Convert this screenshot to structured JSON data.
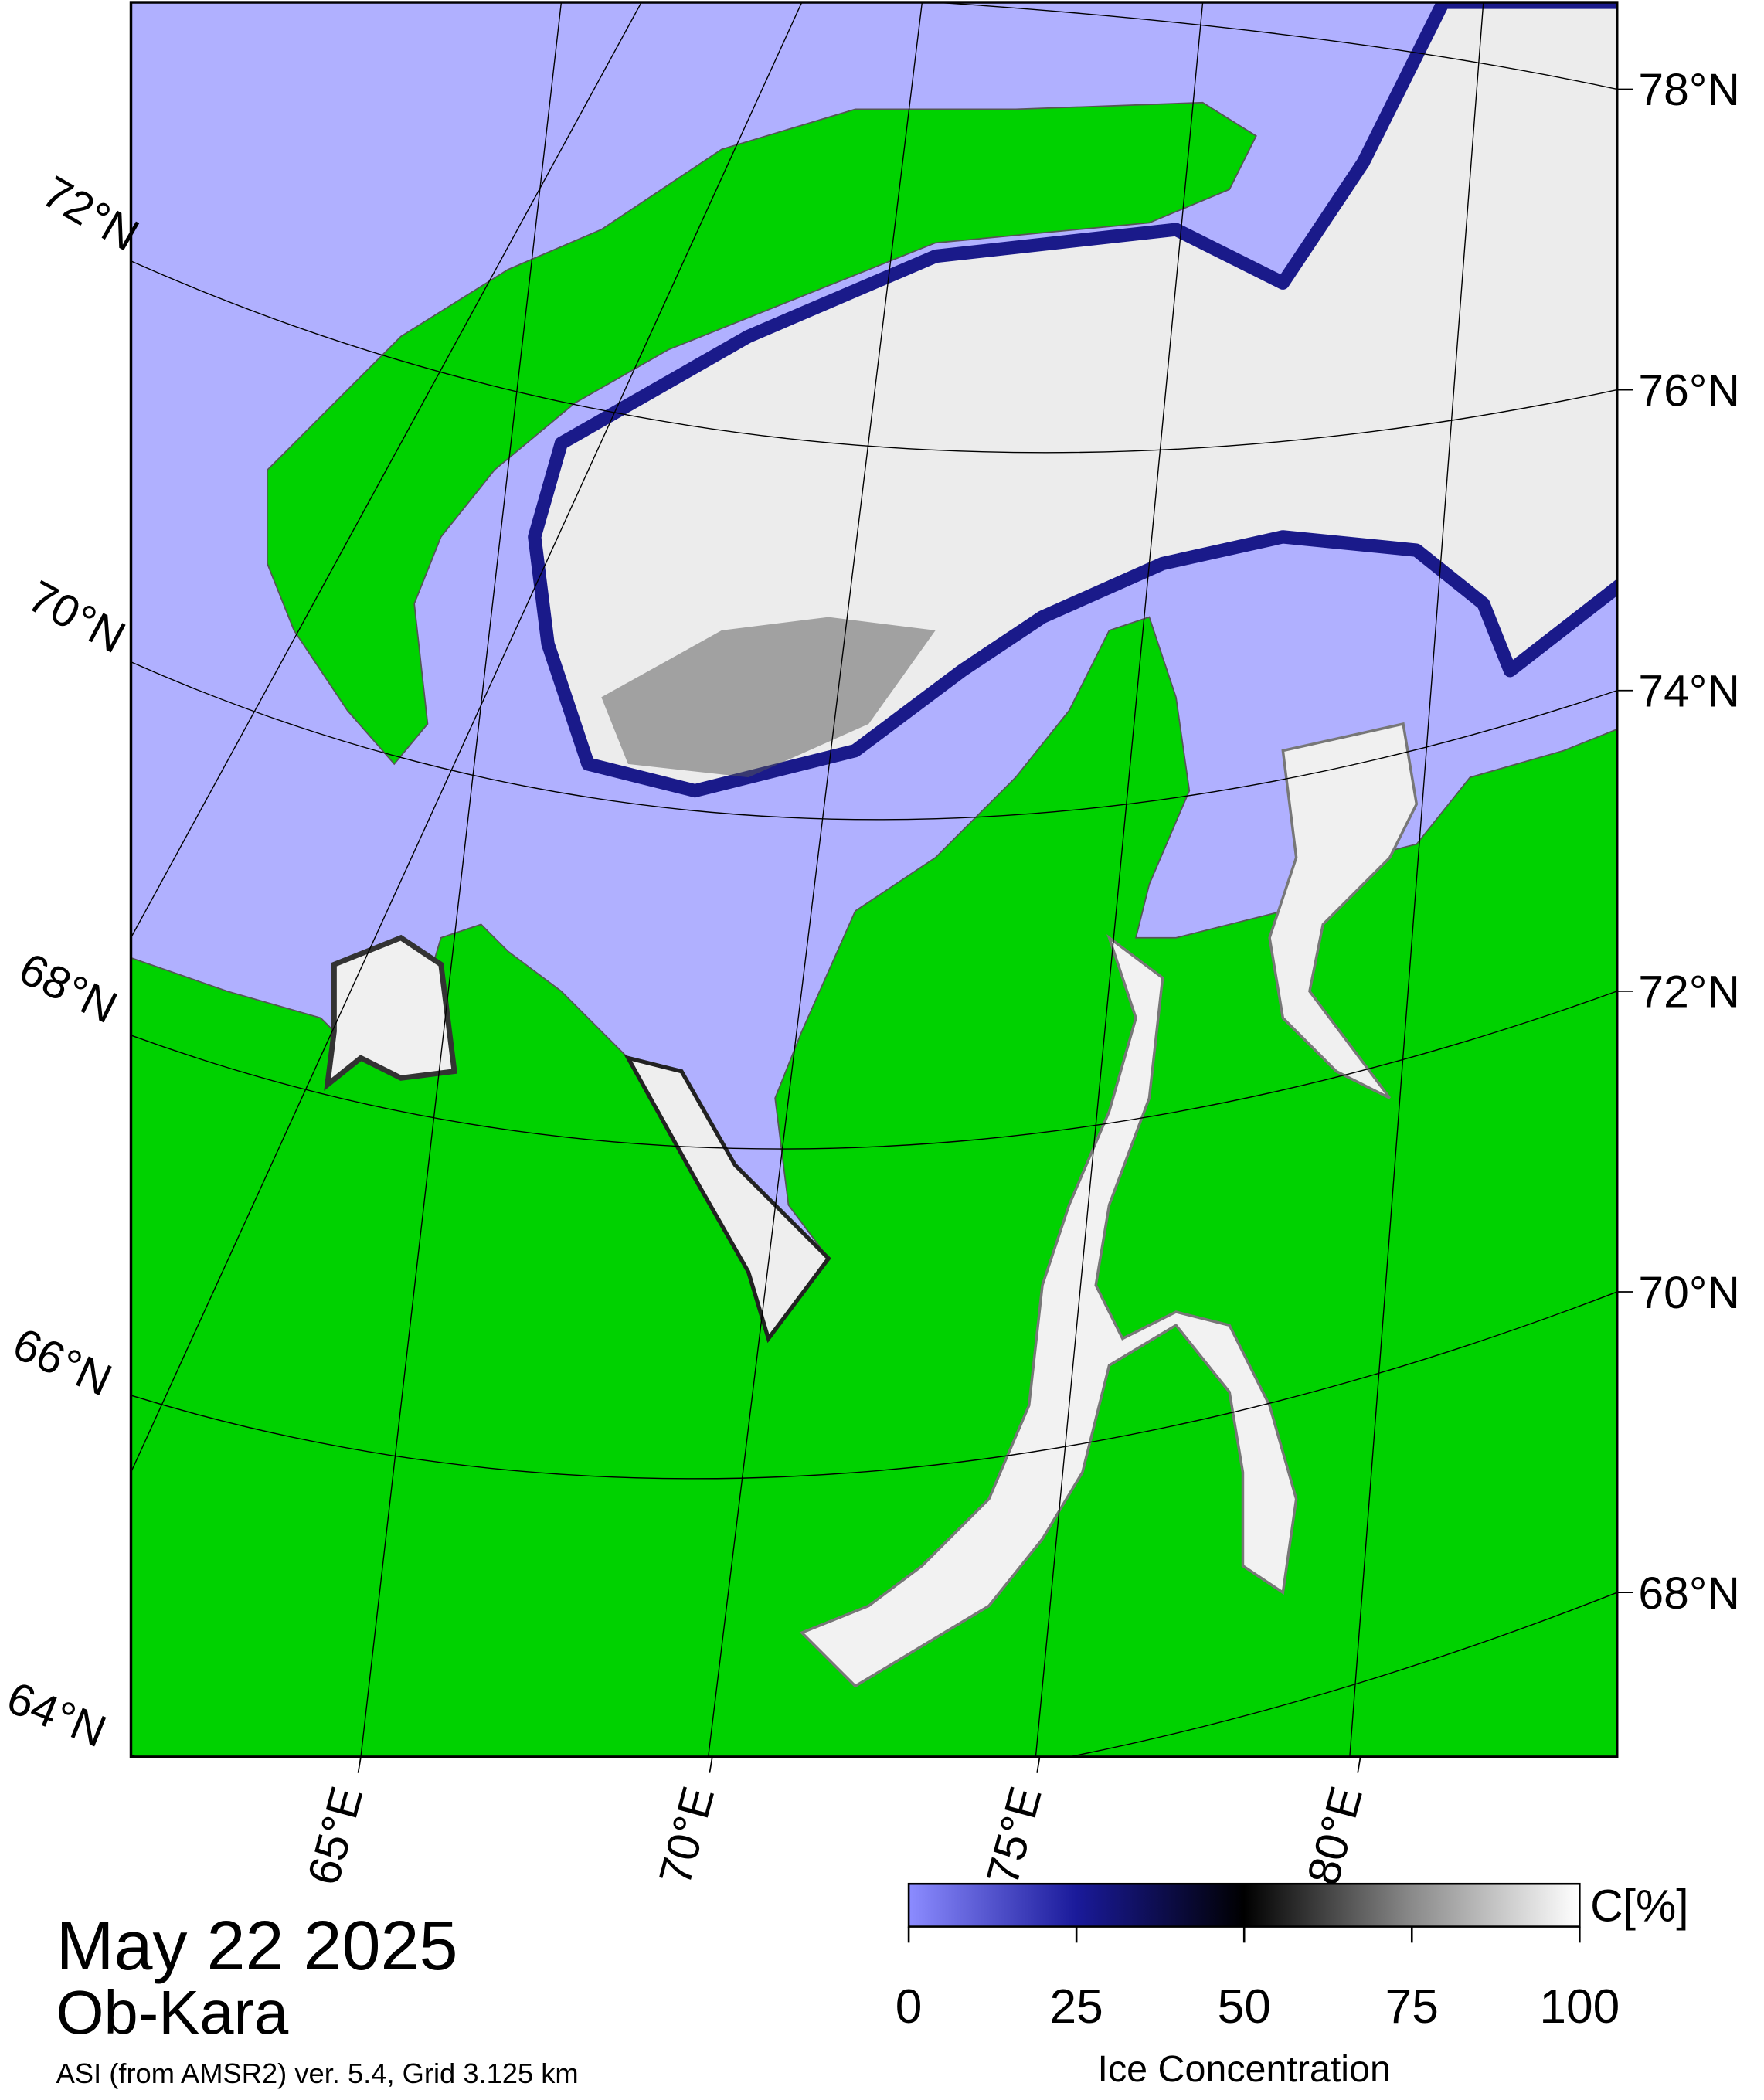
{
  "map": {
    "date": "May 22 2025",
    "region": "Ob-Kara",
    "source": "ASI (from AMSR2) ver. 5.4,  Grid 3.125 km",
    "lat_labels_right": [
      "78°N",
      "76°N",
      "74°N",
      "72°N",
      "70°N",
      "68°N"
    ],
    "lat_labels_left": [
      "72°N",
      "70°N",
      "68°N",
      "66°N",
      "64°N"
    ],
    "lon_labels": [
      "65°E",
      "70°E",
      "75°E",
      "80°E"
    ]
  },
  "colorbar": {
    "unit": "C[%]",
    "title": "Ice Concentration",
    "lim": [
      0,
      100
    ],
    "ticks": [
      0,
      25,
      50,
      75,
      100
    ]
  }
}
